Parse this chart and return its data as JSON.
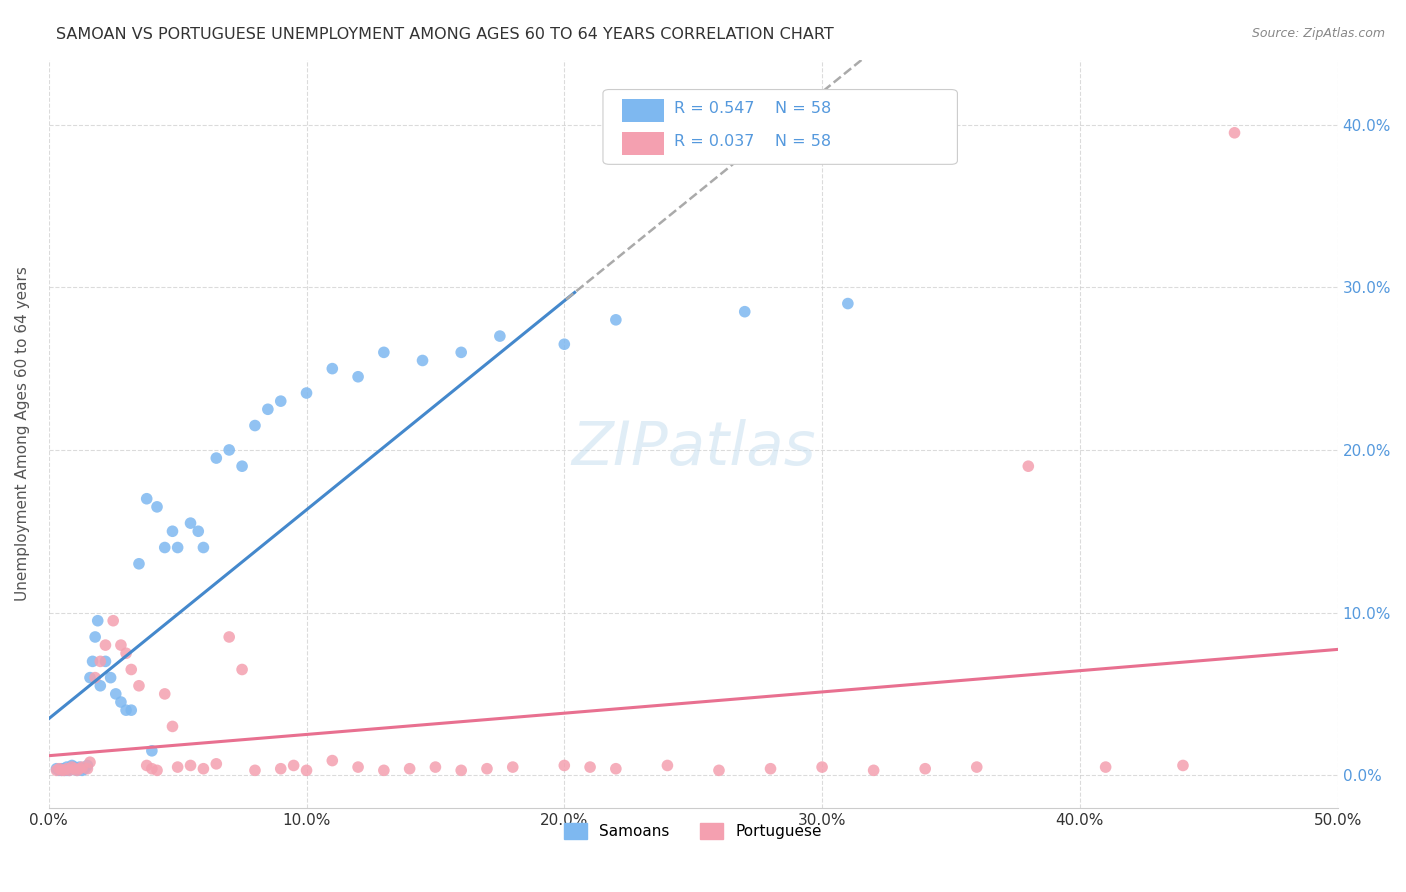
{
  "title": "SAMOAN VS PORTUGUESE UNEMPLOYMENT AMONG AGES 60 TO 64 YEARS CORRELATION CHART",
  "source": "Source: ZipAtlas.com",
  "ylabel": "Unemployment Among Ages 60 to 64 years",
  "xlim": [
    0.0,
    0.5
  ],
  "ylim": [
    -0.02,
    0.44
  ],
  "xticks": [
    0.0,
    0.1,
    0.2,
    0.3,
    0.4,
    0.5
  ],
  "yticks": [
    0.0,
    0.1,
    0.2,
    0.3,
    0.4
  ],
  "xtick_labels": [
    "0.0%",
    "10.0%",
    "20.0%",
    "30.0%",
    "40.0%",
    "50.0%"
  ],
  "ytick_labels": [
    "0.0%",
    "10.0%",
    "20.0%",
    "30.0%",
    "40.0%"
  ],
  "legend_labels": [
    "Samoans",
    "Portuguese"
  ],
  "R_samoan": 0.547,
  "N_samoan": 58,
  "R_portuguese": 0.037,
  "N_portuguese": 58,
  "color_samoan": "#7EB8F0",
  "color_portuguese": "#F4A0B0",
  "color_trendline_samoan": "#4488CC",
  "color_trendline_portuguese": "#E87090",
  "color_trendline_dashed": "#AAAAAA",
  "background_color": "#FFFFFF",
  "grid_color": "#CCCCCC",
  "watermark": "ZIPatlas",
  "title_color": "#333333",
  "tick_color_right": "#5599DD",
  "samoan_x": [
    0.003,
    0.004,
    0.005,
    0.005,
    0.006,
    0.006,
    0.007,
    0.007,
    0.008,
    0.008,
    0.009,
    0.009,
    0.01,
    0.01,
    0.011,
    0.011,
    0.012,
    0.013,
    0.014,
    0.015,
    0.016,
    0.017,
    0.018,
    0.019,
    0.02,
    0.022,
    0.024,
    0.026,
    0.028,
    0.03,
    0.032,
    0.035,
    0.038,
    0.04,
    0.042,
    0.045,
    0.048,
    0.05,
    0.055,
    0.058,
    0.06,
    0.065,
    0.07,
    0.075,
    0.08,
    0.085,
    0.09,
    0.1,
    0.11,
    0.12,
    0.13,
    0.145,
    0.16,
    0.175,
    0.2,
    0.22,
    0.27,
    0.31
  ],
  "samoan_y": [
    0.004,
    0.003,
    0.004,
    0.003,
    0.003,
    0.004,
    0.005,
    0.003,
    0.003,
    0.004,
    0.005,
    0.006,
    0.004,
    0.005,
    0.003,
    0.004,
    0.005,
    0.003,
    0.004,
    0.006,
    0.06,
    0.07,
    0.085,
    0.095,
    0.055,
    0.07,
    0.06,
    0.05,
    0.045,
    0.04,
    0.04,
    0.13,
    0.17,
    0.015,
    0.165,
    0.14,
    0.15,
    0.14,
    0.155,
    0.15,
    0.14,
    0.195,
    0.2,
    0.19,
    0.215,
    0.225,
    0.23,
    0.235,
    0.25,
    0.245,
    0.26,
    0.255,
    0.26,
    0.27,
    0.265,
    0.28,
    0.285,
    0.29
  ],
  "portuguese_x": [
    0.003,
    0.004,
    0.005,
    0.006,
    0.007,
    0.008,
    0.009,
    0.01,
    0.011,
    0.012,
    0.013,
    0.015,
    0.016,
    0.018,
    0.02,
    0.022,
    0.025,
    0.028,
    0.03,
    0.032,
    0.035,
    0.038,
    0.04,
    0.042,
    0.045,
    0.048,
    0.05,
    0.055,
    0.06,
    0.065,
    0.07,
    0.075,
    0.08,
    0.09,
    0.095,
    0.1,
    0.11,
    0.12,
    0.13,
    0.14,
    0.15,
    0.16,
    0.17,
    0.18,
    0.2,
    0.21,
    0.22,
    0.24,
    0.26,
    0.28,
    0.3,
    0.32,
    0.34,
    0.36,
    0.38,
    0.41,
    0.44,
    0.46
  ],
  "portuguese_y": [
    0.003,
    0.004,
    0.003,
    0.003,
    0.004,
    0.003,
    0.005,
    0.004,
    0.003,
    0.004,
    0.005,
    0.004,
    0.008,
    0.06,
    0.07,
    0.08,
    0.095,
    0.08,
    0.075,
    0.065,
    0.055,
    0.006,
    0.004,
    0.003,
    0.05,
    0.03,
    0.005,
    0.006,
    0.004,
    0.007,
    0.085,
    0.065,
    0.003,
    0.004,
    0.006,
    0.003,
    0.009,
    0.005,
    0.003,
    0.004,
    0.005,
    0.003,
    0.004,
    0.005,
    0.006,
    0.005,
    0.004,
    0.006,
    0.003,
    0.004,
    0.005,
    0.003,
    0.004,
    0.005,
    0.19,
    0.005,
    0.006,
    0.395
  ]
}
